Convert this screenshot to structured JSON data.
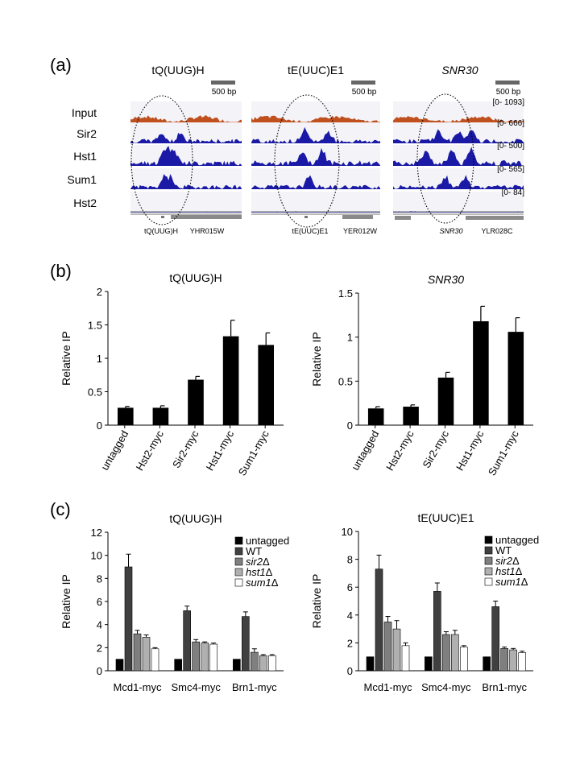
{
  "panel_labels": {
    "a": "(a)",
    "b": "(b)",
    "c": "(c)"
  },
  "tracks": {
    "row_labels": [
      "Input",
      "Sir2",
      "Hst1",
      "Sum1",
      "Hst2"
    ],
    "loci": [
      {
        "title": "tQ(UUG)H",
        "italic": false,
        "scale_bar": "500 bp",
        "gene_labels": [
          {
            "text": "tQ(UUG)H",
            "italic": false
          },
          {
            "text": "YHR015W",
            "italic": false
          }
        ],
        "ranges": []
      },
      {
        "title": "tE(UUC)E1",
        "italic": false,
        "scale_bar": "500 bp",
        "gene_labels": [
          {
            "text": "tE(UUC)E1",
            "italic": false
          },
          {
            "text": "YER012W",
            "italic": false
          }
        ],
        "ranges": []
      },
      {
        "title": "SNR30",
        "italic": true,
        "scale_bar": "500 bp",
        "gene_labels": [
          {
            "text": "SNR30",
            "italic": true
          },
          {
            "text": "YLR028C",
            "italic": false
          }
        ],
        "ranges": [
          "[0- 1093]",
          "[0- 666]",
          "[0- 500]",
          "[0- 565]",
          "[0- 84]"
        ]
      }
    ],
    "colors": {
      "input": "#c0501e",
      "chip": "#1a1aa6",
      "gene": "#7f7f7f"
    }
  },
  "chart_data": [
    {
      "type": "bar",
      "panel": "b",
      "title": "tQ(UUG)H",
      "title_italic": false,
      "ylabel": "Relative IP",
      "ylim": [
        0,
        2
      ],
      "yticks": [
        "0",
        "0.5",
        "1",
        "1.5",
        "2"
      ],
      "categories": [
        "untagged",
        "Hst2-myc",
        "Sir2-myc",
        "Hst1-myc",
        "Sum1-myc"
      ],
      "values": [
        0.26,
        0.26,
        0.68,
        1.33,
        1.2
      ],
      "errors": [
        0.02,
        0.03,
        0.05,
        0.24,
        0.18
      ]
    },
    {
      "type": "bar",
      "panel": "b",
      "title": "SNR30",
      "title_italic": true,
      "ylabel": "Relative IP",
      "ylim": [
        0,
        1.5
      ],
      "yticks": [
        "0",
        "0.5",
        "1",
        "1.5"
      ],
      "categories": [
        "untagged",
        "Hst2-myc",
        "Sir2-myc",
        "Hst1-myc",
        "Sum1-myc"
      ],
      "values": [
        0.19,
        0.21,
        0.54,
        1.18,
        1.06
      ],
      "errors": [
        0.02,
        0.02,
        0.06,
        0.17,
        0.16
      ]
    },
    {
      "type": "bar",
      "panel": "c",
      "title": "tQ(UUG)H",
      "title_italic": false,
      "ylabel": "Relative IP",
      "ylim": [
        0,
        12
      ],
      "yticks": [
        "0",
        "2",
        "4",
        "6",
        "8",
        "10",
        "12"
      ],
      "categories": [
        "Mcd1-myc",
        "Smc4-myc",
        "Brn1-myc"
      ],
      "legend": "top-right",
      "series": [
        {
          "name": "untagged",
          "label": [
            {
              "t": "untagged",
              "i": false
            }
          ],
          "color": "#000000",
          "values": [
            1,
            1,
            1
          ],
          "errors": [
            0,
            0,
            0
          ]
        },
        {
          "name": "WT",
          "label": [
            {
              "t": "WT",
              "i": false
            }
          ],
          "color": "#404040",
          "values": [
            9.0,
            5.2,
            4.7
          ],
          "errors": [
            1.1,
            0.4,
            0.4
          ]
        },
        {
          "name": "sir2Δ",
          "label": [
            {
              "t": "sir2",
              "i": true
            },
            {
              "t": "Δ",
              "i": false
            }
          ],
          "color": "#7f7f7f",
          "values": [
            3.2,
            2.5,
            1.6
          ],
          "errors": [
            0.3,
            0.2,
            0.3
          ]
        },
        {
          "name": "hst1Δ",
          "label": [
            {
              "t": "hst1",
              "i": true
            },
            {
              "t": "Δ",
              "i": false
            }
          ],
          "color": "#b0b0b0",
          "values": [
            2.9,
            2.4,
            1.3
          ],
          "errors": [
            0.2,
            0.1,
            0.1
          ]
        },
        {
          "name": "sum1Δ",
          "label": [
            {
              "t": "sum1",
              "i": true
            },
            {
              "t": "Δ",
              "i": false
            }
          ],
          "color": "#ffffff",
          "values": [
            1.9,
            2.3,
            1.3
          ],
          "errors": [
            0.1,
            0.1,
            0.1
          ]
        }
      ]
    },
    {
      "type": "bar",
      "panel": "c",
      "title": "tE(UUC)E1",
      "title_italic": false,
      "ylabel": "Relative IP",
      "ylim": [
        0,
        10
      ],
      "yticks": [
        "0",
        "2",
        "4",
        "6",
        "8",
        "10"
      ],
      "categories": [
        "Mcd1-myc",
        "Smc4-myc",
        "Brn1-myc"
      ],
      "legend": "top-right",
      "series": [
        {
          "name": "untagged",
          "label": [
            {
              "t": "untagged",
              "i": false
            }
          ],
          "color": "#000000",
          "values": [
            1,
            1,
            1
          ],
          "errors": [
            0,
            0,
            0
          ]
        },
        {
          "name": "WT",
          "label": [
            {
              "t": "WT",
              "i": false
            }
          ],
          "color": "#404040",
          "values": [
            7.3,
            5.7,
            4.6
          ],
          "errors": [
            1.0,
            0.6,
            0.4
          ]
        },
        {
          "name": "sir2Δ",
          "label": [
            {
              "t": "sir2",
              "i": true
            },
            {
              "t": "Δ",
              "i": false
            }
          ],
          "color": "#7f7f7f",
          "values": [
            3.5,
            2.6,
            1.6
          ],
          "errors": [
            0.4,
            0.2,
            0.1
          ]
        },
        {
          "name": "hst1Δ",
          "label": [
            {
              "t": "hst1",
              "i": true
            },
            {
              "t": "Δ",
              "i": false
            }
          ],
          "color": "#b0b0b0",
          "values": [
            3.0,
            2.6,
            1.5
          ],
          "errors": [
            0.6,
            0.3,
            0.1
          ]
        },
        {
          "name": "sum1Δ",
          "label": [
            {
              "t": "sum1",
              "i": true
            },
            {
              "t": "Δ",
              "i": false
            }
          ],
          "color": "#ffffff",
          "values": [
            1.8,
            1.7,
            1.3
          ],
          "errors": [
            0.2,
            0.1,
            0.1
          ]
        }
      ]
    }
  ]
}
